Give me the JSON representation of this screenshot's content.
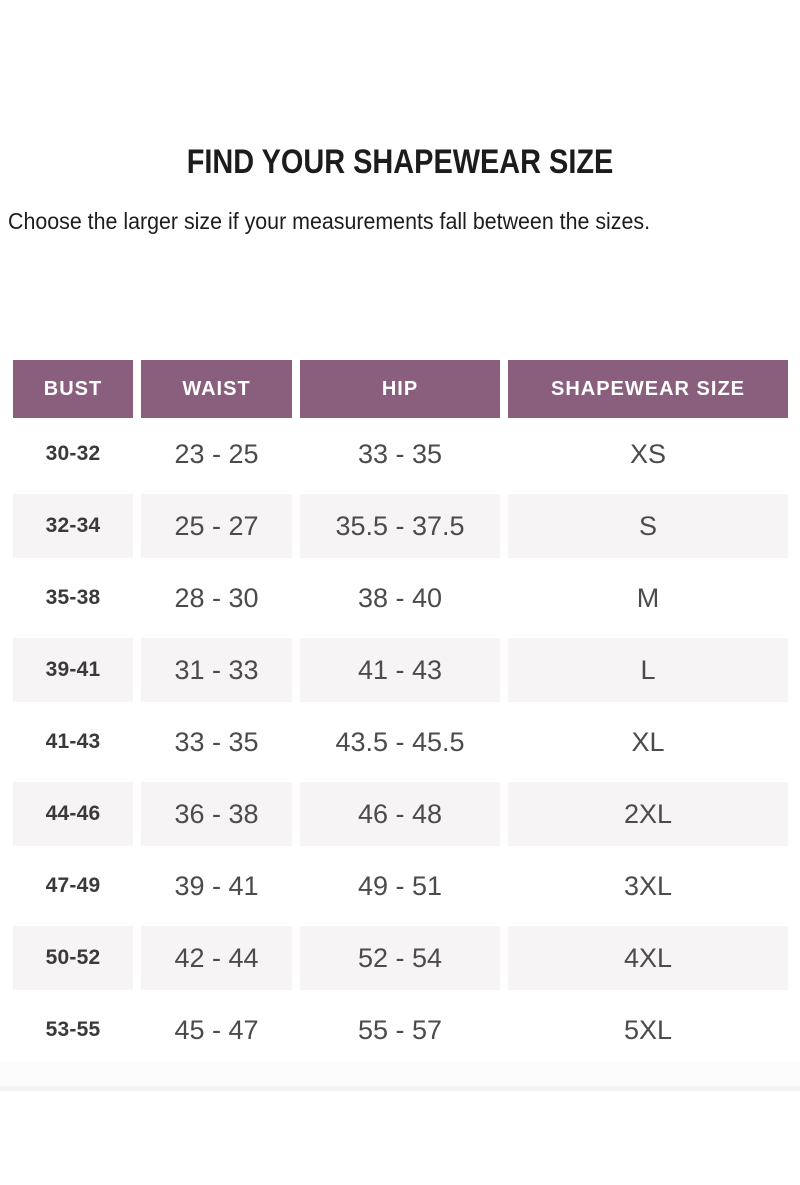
{
  "page": {
    "title": "FIND YOUR SHAPEWEAR SIZE",
    "subtitle": "Choose the larger size if your measurements fall between the sizes."
  },
  "colors": {
    "header_bg": "#8a5f7d",
    "header_text": "#ffffff",
    "row_alt_bg": "#f6f4f5",
    "title_text": "#1c1c1c",
    "data_text": "#4b4b4e",
    "bust_text": "#3a3a3c",
    "divider": "#f4f2f3"
  },
  "table": {
    "headers": [
      "BUST",
      "WAIST",
      "HIP",
      "SHAPEWEAR SIZE"
    ],
    "rows": [
      {
        "bust": "30-32",
        "waist": "23 - 25",
        "hip": "33 - 35",
        "size": "XS"
      },
      {
        "bust": "32-34",
        "waist": "25 - 27",
        "hip": "35.5 - 37.5",
        "size": "S"
      },
      {
        "bust": "35-38",
        "waist": "28 - 30",
        "hip": "38 - 40",
        "size": "M"
      },
      {
        "bust": "39-41",
        "waist": "31 - 33",
        "hip": "41 - 43",
        "size": "L"
      },
      {
        "bust": "41-43",
        "waist": "33 - 35",
        "hip": "43.5 - 45.5",
        "size": "XL"
      },
      {
        "bust": "44-46",
        "waist": "36 - 38",
        "hip": "46 - 48",
        "size": "2XL"
      },
      {
        "bust": "47-49",
        "waist": "39 - 41",
        "hip": "49 - 51",
        "size": "3XL"
      },
      {
        "bust": "50-52",
        "waist": "42 - 44",
        "hip": "52 - 54",
        "size": "4XL"
      },
      {
        "bust": "53-55",
        "waist": "45 - 47",
        "hip": "55 - 57",
        "size": "5XL"
      }
    ]
  }
}
